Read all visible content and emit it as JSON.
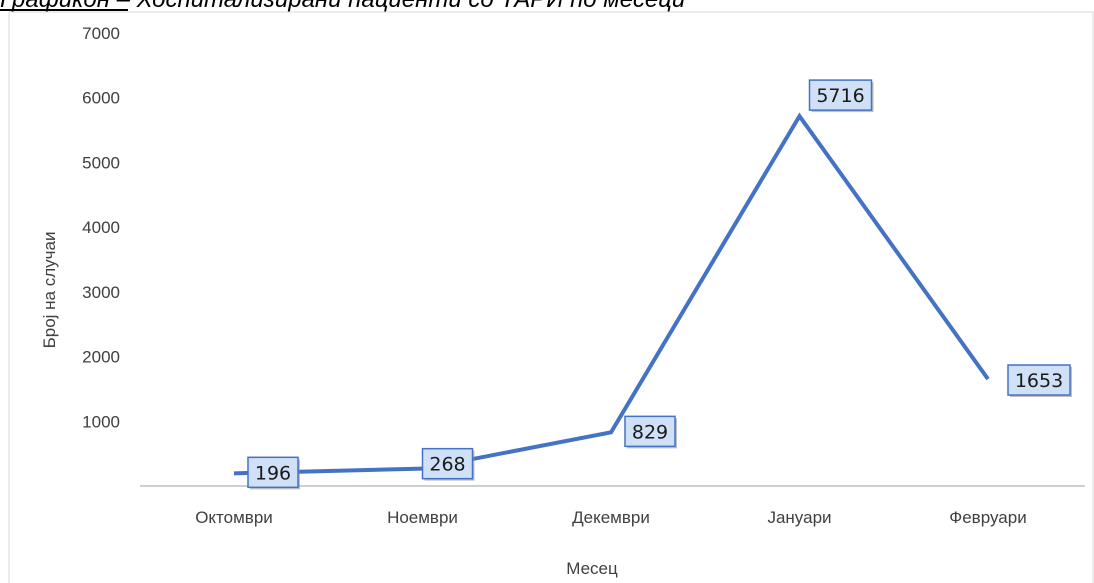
{
  "caption": {
    "fragment": "Графикон – Хоспитализирани пациенти со ТАРИ по месеци"
  },
  "colors": {
    "line": "#4472c4",
    "label_fill": "#cfe0f7",
    "label_border": "#4472c4",
    "axis": "#bfbfbf",
    "frame": "#d9d9d9"
  },
  "chart_data": {
    "type": "line",
    "title": "",
    "xlabel": "Месец",
    "ylabel": "Број на случаи",
    "categories": [
      "Октомври",
      "Ноември",
      "Декември",
      "Јануари",
      "Февруари"
    ],
    "series": [
      {
        "values": [
          196,
          268,
          829,
          5716,
          1653
        ]
      }
    ],
    "ylim": [
      0,
      7000
    ],
    "yticks": [
      1000,
      2000,
      3000,
      4000,
      5000,
      6000,
      7000
    ],
    "grid": false,
    "legend": "none"
  }
}
